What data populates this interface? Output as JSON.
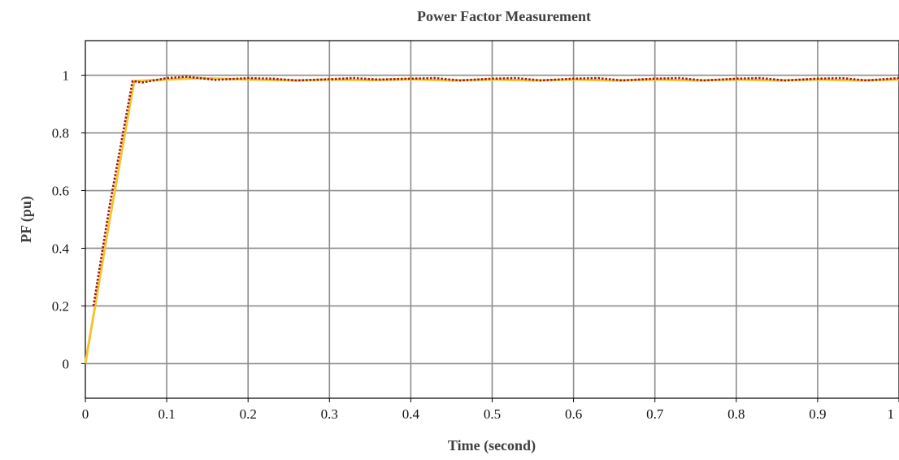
{
  "chart_data": {
    "type": "line",
    "title": "Power Factor Measurement",
    "xlabel": "Time (second)",
    "ylabel": "PF (pu)",
    "xlim": [
      0,
      1
    ],
    "ylim": [
      -0.12,
      1.12
    ],
    "xticks": [
      0,
      0.1,
      0.2,
      0.3,
      0.4,
      0.5,
      0.6,
      0.7,
      0.8,
      0.9,
      1
    ],
    "xtick_labels": [
      "0",
      "0.1",
      "0.2",
      "0.3",
      "0.4",
      "0.5",
      "0.6",
      "0.7",
      "0.8",
      "0.9",
      "1"
    ],
    "yticks": [
      0,
      0.2,
      0.4,
      0.6,
      0.8,
      1
    ],
    "ytick_labels": [
      "0",
      "0.2",
      "0.4",
      "0.6",
      "0.8",
      "1"
    ],
    "grid": true,
    "series": [
      {
        "color": "#f2c530",
        "style": "solid",
        "x": [
          0,
          0.03,
          0.06,
          0.1,
          0.14,
          0.2,
          0.26,
          0.3,
          0.35,
          0.4,
          0.45,
          0.5,
          0.55,
          0.6,
          0.65,
          0.7,
          0.75,
          0.8,
          0.85,
          0.9,
          0.95,
          1.0
        ],
        "y": [
          0,
          0.5,
          0.98,
          0.985,
          0.99,
          0.985,
          0.982,
          0.985,
          0.983,
          0.986,
          0.982,
          0.985,
          0.982,
          0.985,
          0.982,
          0.985,
          0.982,
          0.985,
          0.982,
          0.985,
          0.982,
          0.985
        ]
      },
      {
        "color": "#9e1818",
        "style": "dotted",
        "x": [
          0.01,
          0.03,
          0.058,
          0.07,
          0.09,
          0.1,
          0.125,
          0.16,
          0.2,
          0.23,
          0.26,
          0.3,
          0.33,
          0.36,
          0.4,
          0.43,
          0.46,
          0.5,
          0.53,
          0.56,
          0.6,
          0.63,
          0.66,
          0.7,
          0.73,
          0.76,
          0.8,
          0.83,
          0.86,
          0.9,
          0.93,
          0.96,
          1.0
        ],
        "y": [
          0.2,
          0.55,
          0.98,
          0.975,
          0.985,
          0.99,
          0.995,
          0.984,
          0.99,
          0.988,
          0.982,
          0.986,
          0.99,
          0.985,
          0.988,
          0.99,
          0.982,
          0.988,
          0.99,
          0.982,
          0.988,
          0.99,
          0.982,
          0.988,
          0.99,
          0.982,
          0.988,
          0.99,
          0.982,
          0.988,
          0.99,
          0.982,
          0.99
        ]
      }
    ]
  }
}
